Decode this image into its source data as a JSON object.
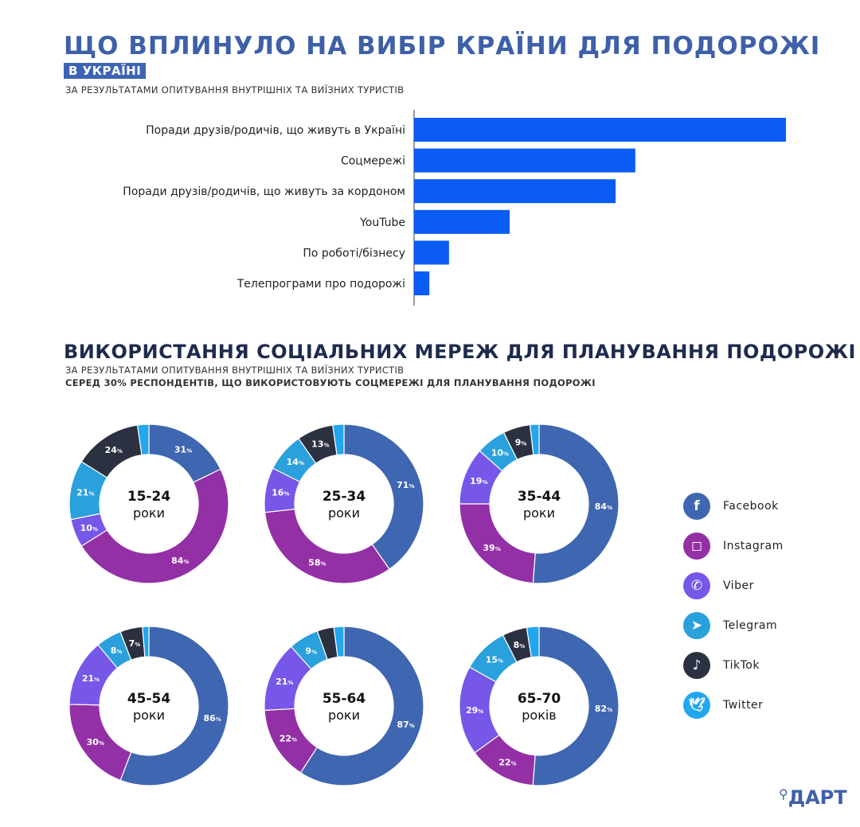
{
  "header": {
    "title": "ЩО ВПЛИНУЛО НА ВИБІР КРАЇНИ ДЛЯ ПОДОРОЖІ",
    "badge": "В УКРАЇНІ",
    "subtitle": "ЗА РЕЗУЛЬТАТАМИ ОПИТУВАННЯ ВНУТРІШНІХ ТА ВИЇЗНИХ ТУРИСТІВ"
  },
  "section2": {
    "title": "ВИКОРИСТАННЯ СОЦІАЛЬНИХ МЕРЕЖ ДЛЯ ПЛАНУВАННЯ ПОДОРОЖІ",
    "subtitle": "ЗА РЕЗУЛЬТАТАМИ ОПИТУВАННЯ ВНУТРІШНІХ ТА ВИЇЗНИХ ТУРИСТІВ",
    "note": "СЕРЕД 30% РЕСПОНДЕНТІВ, ЩО ВИКОРИСТОВУЮТЬ СОЦМЕРЕЖІ ДЛЯ ПЛАНУВАННЯ ПОДОРОЖІ"
  },
  "legend": [
    {
      "name": "Facebook",
      "icon": "facebook-icon",
      "glyph": "f",
      "color": "#3f66b0"
    },
    {
      "name": "Instagram",
      "icon": "instagram-icon",
      "glyph": "◻",
      "color": "#9330a6"
    },
    {
      "name": "Viber",
      "icon": "viber-icon",
      "glyph": "✆",
      "color": "#7657e8"
    },
    {
      "name": "Telegram",
      "icon": "telegram-icon",
      "glyph": "➤",
      "color": "#2aa0dc"
    },
    {
      "name": "TikTok",
      "icon": "tiktok-icon",
      "glyph": "♪",
      "color": "#2b3140"
    },
    {
      "name": "Twitter",
      "icon": "twitter-icon",
      "glyph": "🕊",
      "color": "#22a6ee"
    }
  ],
  "logo": "ДАРТ",
  "chart_data": [
    {
      "type": "bar",
      "orientation": "horizontal",
      "categories": [
        "Поради друзів/родичів, що живуть в Україні",
        "Соцмережі",
        "Поради друзів/родичів, що живуть за кордоном",
        "YouTube",
        "По роботі/бізнесу",
        "Телепрограми про подорожі"
      ],
      "values": [
        100,
        59.5,
        54.2,
        25.7,
        9.4,
        4.1
      ],
      "value_scale": "relative (no axis printed), largest = 100",
      "color": "#0a5cf5",
      "grid": false
    },
    {
      "type": "pie",
      "variant": "donut",
      "series_names": [
        "Facebook",
        "Instagram",
        "Viber",
        "Telegram",
        "TikTok",
        "Twitter"
      ],
      "colors": [
        "#3f66b0",
        "#9330a6",
        "#7657e8",
        "#2aa0dc",
        "#2b3140",
        "#22a6ee"
      ],
      "donuts": [
        {
          "title": "15-24",
          "unit": "роки",
          "values": [
            31,
            84,
            10,
            21,
            24,
            4
          ],
          "labels": [
            "31",
            "84",
            "10",
            "21",
            "24",
            null
          ]
        },
        {
          "title": "25-34",
          "unit": "роки",
          "values": [
            71,
            58,
            16,
            14,
            13,
            4
          ],
          "labels": [
            "71",
            "58",
            "16",
            "14",
            "13",
            null
          ]
        },
        {
          "title": "35-44",
          "unit": "роки",
          "values": [
            84,
            39,
            19,
            10,
            9,
            3
          ],
          "labels": [
            "84",
            "39",
            "19",
            "10",
            "9",
            null
          ]
        },
        {
          "title": "45-54",
          "unit": "роки",
          "values": [
            86,
            30,
            21,
            8,
            7,
            2
          ],
          "labels": [
            "86",
            "30",
            "21",
            "8",
            "7",
            null
          ]
        },
        {
          "title": "55-64",
          "unit": "роки",
          "values": [
            87,
            22,
            21,
            9,
            5,
            3
          ],
          "labels": [
            "87",
            "22",
            "21",
            "9",
            null,
            null
          ]
        },
        {
          "title": "65-70",
          "unit": "років",
          "values": [
            82,
            22,
            29,
            15,
            8,
            4
          ],
          "labels": [
            "82",
            "22",
            "29",
            "15",
            "8",
            null
          ]
        }
      ],
      "label_suffix": "%"
    }
  ]
}
